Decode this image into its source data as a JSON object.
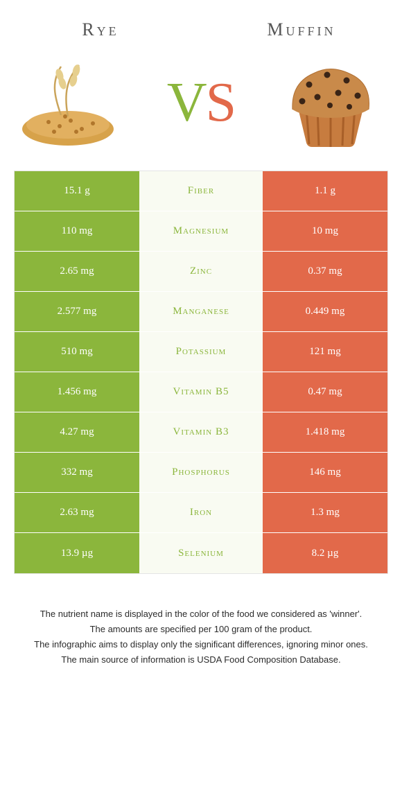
{
  "header": {
    "left_title": "Rye",
    "right_title": "Muffin"
  },
  "vs": {
    "v": "V",
    "s": "S"
  },
  "colors": {
    "green": "#8bb63c",
    "orange": "#e2694a",
    "mid_bg": "#f9fbf2",
    "border": "#e4e4e4"
  },
  "rows": [
    {
      "nutrient": "Fiber",
      "left": "15.1 g",
      "right": "1.1 g",
      "winner": "left"
    },
    {
      "nutrient": "Magnesium",
      "left": "110 mg",
      "right": "10 mg",
      "winner": "left"
    },
    {
      "nutrient": "Zinc",
      "left": "2.65 mg",
      "right": "0.37 mg",
      "winner": "left"
    },
    {
      "nutrient": "Manganese",
      "left": "2.577 mg",
      "right": "0.449 mg",
      "winner": "left"
    },
    {
      "nutrient": "Potassium",
      "left": "510 mg",
      "right": "121 mg",
      "winner": "left"
    },
    {
      "nutrient": "Vitamin B5",
      "left": "1.456 mg",
      "right": "0.47 mg",
      "winner": "left"
    },
    {
      "nutrient": "Vitamin B3",
      "left": "4.27 mg",
      "right": "1.418 mg",
      "winner": "left"
    },
    {
      "nutrient": "Phosphorus",
      "left": "332 mg",
      "right": "146 mg",
      "winner": "left"
    },
    {
      "nutrient": "Iron",
      "left": "2.63 mg",
      "right": "1.3 mg",
      "winner": "left"
    },
    {
      "nutrient": "Selenium",
      "left": "13.9 µg",
      "right": "8.2 µg",
      "winner": "left"
    }
  ],
  "notes": [
    "The nutrient name is displayed in the color of the food we considered as 'winner'.",
    "The amounts are specified per 100 gram of the product.",
    "The infographic aims to display only the significant differences, ignoring minor ones.",
    "The main source of information is USDA Food Composition Database."
  ]
}
